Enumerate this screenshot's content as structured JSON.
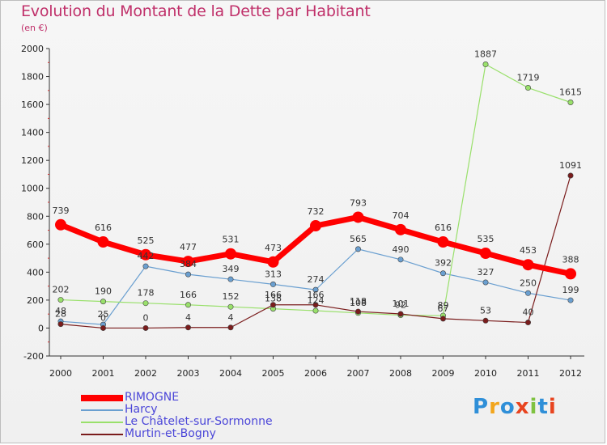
{
  "chart_data": {
    "type": "line",
    "title": "Evolution du Montant de la Dette par Habitant",
    "subtitle": "(en €)",
    "categories": [
      "2000",
      "2001",
      "2002",
      "2003",
      "2004",
      "2005",
      "2006",
      "2007",
      "2008",
      "2009",
      "2010",
      "2011",
      "2012"
    ],
    "ylim": [
      -200,
      2000
    ],
    "yticks": [
      -200,
      0,
      200,
      400,
      600,
      800,
      1000,
      1200,
      1400,
      1600,
      1800,
      2000
    ],
    "grid": false,
    "legend_position": "bottom-left",
    "series": [
      {
        "name": "RIMOGNE",
        "color": "#ff0000",
        "values": [
          739,
          616,
          525,
          477,
          531,
          473,
          732,
          793,
          704,
          616,
          535,
          453,
          388
        ]
      },
      {
        "name": "Harcy",
        "color": "#6a9fd0",
        "values": [
          48,
          25,
          442,
          384,
          349,
          313,
          274,
          565,
          490,
          392,
          327,
          250,
          199
        ]
      },
      {
        "name": "Le Châtelet-sur-Sormonne",
        "color": "#99e06b",
        "values": [
          202,
          190,
          178,
          166,
          152,
          138,
          124,
          108,
          92,
          89,
          1887,
          1719,
          1615
        ]
      },
      {
        "name": "Murtin-et-Bogny",
        "color": "#7a1c1c",
        "values": [
          28,
          0,
          0,
          4,
          4,
          166,
          166,
          118,
          101,
          67,
          53,
          40,
          1091
        ]
      }
    ]
  },
  "logo": {
    "letters": [
      "P",
      "r",
      "o",
      "x",
      "i",
      "t",
      "i"
    ],
    "colors": [
      "#2f8fd8",
      "#f2a51c",
      "#2f8fd8",
      "#e8441f",
      "#7fc241",
      "#2f8fd8",
      "#e8441f"
    ]
  }
}
